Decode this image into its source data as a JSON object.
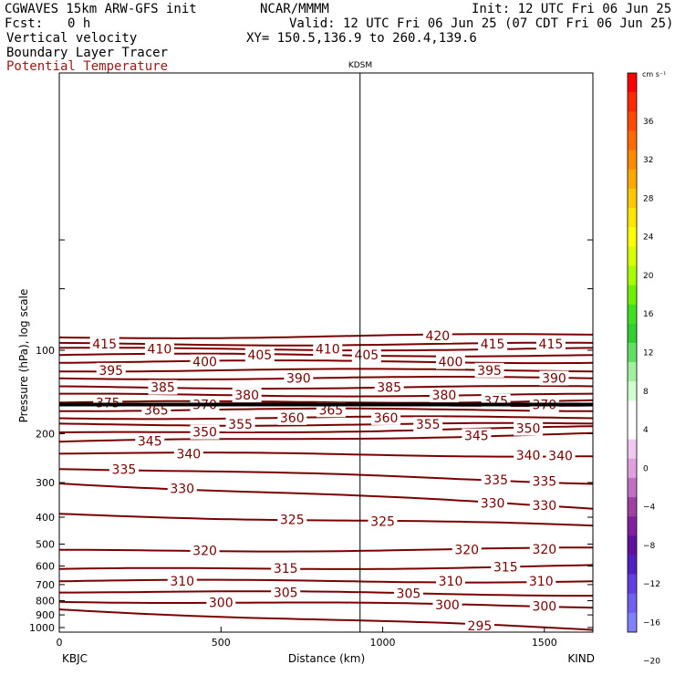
{
  "header": {
    "model": "CGWAVES 15km ARW-GFS init",
    "fcst_label": "Fcst:",
    "fcst_value": "0 h",
    "org": "NCAR/MMMM",
    "init": "Init: 12 UTC Fri 06 Jun 25",
    "valid": "Valid: 12 UTC Fri 06 Jun 25 (07 CDT Fri 06 Jun 25)",
    "xy": "XY= 150.5,136.9 to 260.4,139.6",
    "fields": [
      "Vertical velocity",
      "Boundary Layer Tracer",
      "Potential Temperature"
    ],
    "field_color": "#a01818"
  },
  "chart_data": {
    "type": "contour-cross-section",
    "station_top": "KDSM",
    "station_left": "KBJC",
    "station_right": "KIND",
    "xlabel": "Distance (km)",
    "ylabel": "Pressure (hPa), log scale",
    "x_range": [
      0,
      1650
    ],
    "x_ticks": [
      "0",
      "500",
      "1000",
      "1500"
    ],
    "x_tick_values": [
      0,
      500,
      1000,
      1500
    ],
    "y_ticks": [
      "100",
      "200",
      "300",
      "400",
      "500",
      "600",
      "700",
      "800",
      "900",
      "1000"
    ],
    "y_tick_values": [
      100,
      200,
      300,
      400,
      500,
      600,
      700,
      800,
      900,
      1000
    ],
    "y_range_top": 40,
    "y_range_bottom": 1050,
    "station_x": 930,
    "contour_color": "#7a0000",
    "tropopause_pressure": 157,
    "contours": [
      {
        "label": "295",
        "p_left": 860,
        "p_right": 1020,
        "labels_at": [
          1300
        ]
      },
      {
        "label": "300",
        "p_left": 800,
        "p_right": 840,
        "labels_at": [
          500,
          1200,
          1500
        ]
      },
      {
        "label": "305",
        "p_left": 740,
        "p_right": 760,
        "labels_at": [
          700,
          1080
        ]
      },
      {
        "label": "310",
        "p_left": 680,
        "p_right": 680,
        "labels_at": [
          380,
          1210,
          1490
        ]
      },
      {
        "label": "315",
        "p_left": 620,
        "p_right": 600,
        "labels_at": [
          700,
          1380
        ]
      },
      {
        "label": "320",
        "p_left": 530,
        "p_right": 520,
        "labels_at": [
          450,
          1260,
          1500
        ]
      },
      {
        "label": "325",
        "p_left": 390,
        "p_right": 430,
        "labels_at": [
          720,
          1000
        ]
      },
      {
        "label": "330",
        "p_left": 300,
        "p_right": 370,
        "labels_at": [
          380,
          1340,
          1500
        ]
      },
      {
        "label": "335",
        "p_left": 265,
        "p_right": 300,
        "labels_at": [
          200,
          1350,
          1500
        ]
      },
      {
        "label": "340",
        "p_left": 235,
        "p_right": 240,
        "labels_at": [
          400,
          1450,
          1550
        ]
      },
      {
        "label": "345",
        "p_left": 215,
        "p_right": 200,
        "labels_at": [
          280,
          1290
        ]
      },
      {
        "label": "350",
        "p_left": 200,
        "p_right": 190,
        "labels_at": [
          450,
          1450
        ]
      },
      {
        "label": "355",
        "p_left": 185,
        "p_right": 185,
        "labels_at": [
          560,
          1140
        ]
      },
      {
        "label": "360",
        "p_left": 175,
        "p_right": 175,
        "labels_at": [
          720,
          1010
        ]
      },
      {
        "label": "365",
        "p_left": 164,
        "p_right": 164,
        "labels_at": [
          300,
          840
        ]
      },
      {
        "label": "370",
        "p_left": 157,
        "p_right": 157,
        "labels_at": [
          450,
          1500
        ]
      },
      {
        "label": "375",
        "p_left": 155,
        "p_right": 152,
        "labels_at": [
          150,
          1350
        ]
      },
      {
        "label": "380",
        "p_left": 145,
        "p_right": 145,
        "labels_at": [
          580,
          1190
        ]
      },
      {
        "label": "385",
        "p_left": 136,
        "p_right": 136,
        "labels_at": [
          320,
          1020
        ]
      },
      {
        "label": "390",
        "p_left": 126,
        "p_right": 126,
        "labels_at": [
          740,
          1530
        ]
      },
      {
        "label": "395",
        "p_left": 118,
        "p_right": 118,
        "labels_at": [
          160,
          1330
        ]
      },
      {
        "label": "400",
        "p_left": 110,
        "p_right": 110,
        "labels_at": [
          450,
          1210
        ]
      },
      {
        "label": "405",
        "p_left": 104,
        "p_right": 104,
        "labels_at": [
          620,
          950
        ]
      },
      {
        "label": "410",
        "p_left": 99,
        "p_right": 99,
        "labels_at": [
          310,
          830
        ]
      },
      {
        "label": "415",
        "p_left": 95,
        "p_right": 95,
        "labels_at": [
          140,
          1340,
          1520
        ]
      },
      {
        "label": "420",
        "p_left": 90,
        "p_right": 88,
        "labels_at": [
          1170
        ]
      }
    ]
  },
  "colorbar": {
    "unit": "cm s⁻¹",
    "tick_labels": [
      "36",
      "32",
      "28",
      "24",
      "20",
      "16",
      "12",
      "8",
      "4",
      "0",
      "−4",
      "−8",
      "−12",
      "−16",
      "−20"
    ],
    "colors": [
      "#ff0000",
      "#ff2a00",
      "#ff4a00",
      "#ff6a00",
      "#ff8a00",
      "#ffaa00",
      "#ffc800",
      "#ffe600",
      "#ffff00",
      "#d8ff00",
      "#a8ff00",
      "#70f000",
      "#40e020",
      "#30d030",
      "#60e060",
      "#a0f0a0",
      "#d0ffd0",
      "#ffffff",
      "#ffffff",
      "#f0c8f0",
      "#e0a0e0",
      "#c070c0",
      "#a040a0",
      "#8020a0",
      "#6010a0",
      "#5020c0",
      "#6040e0",
      "#7060f0",
      "#8080ff"
    ]
  }
}
